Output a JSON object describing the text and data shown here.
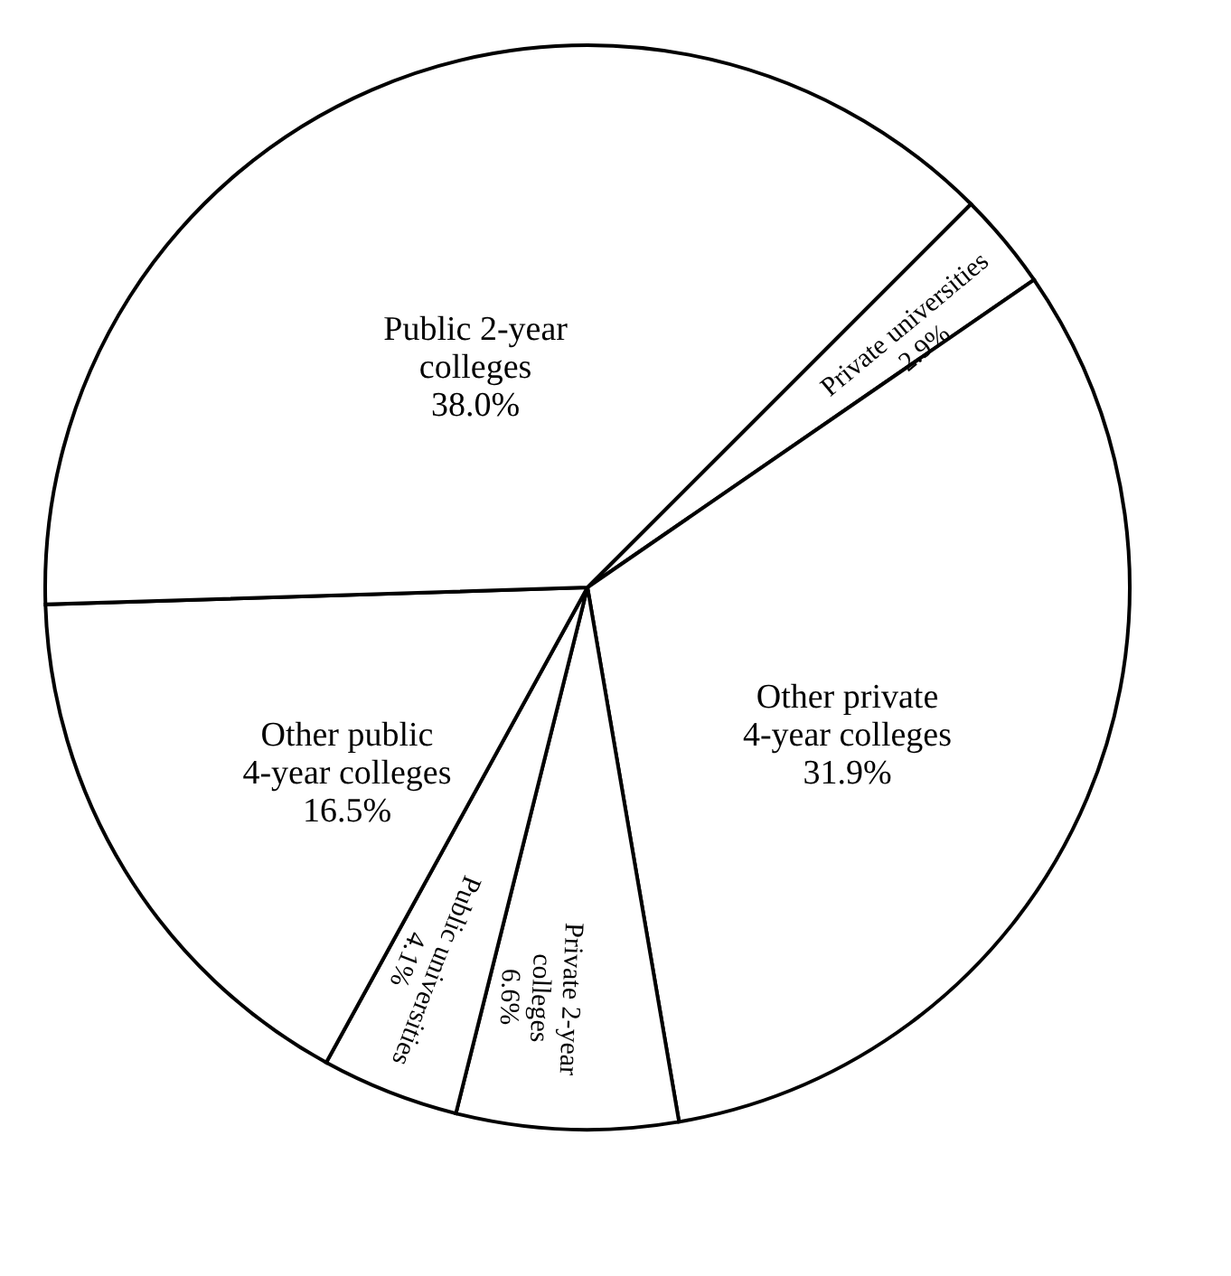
{
  "chart_data": {
    "type": "pie",
    "categories": [
      "Private universities",
      "Other private 4-year colleges",
      "Private 2-year colleges",
      "Public universities",
      "Other public 4-year colleges",
      "Public 2-year colleges"
    ],
    "values": [
      2.9,
      31.9,
      6.6,
      4.1,
      16.5,
      38.0
    ],
    "value_labels": [
      "2.9%",
      "31.9%",
      "6.6%",
      "4.1%",
      "16.5%",
      "38.0%"
    ],
    "colors": [
      "#ffffff",
      "#ffffff",
      "#ffffff",
      "#ffffff",
      "#ffffff",
      "#ffffff"
    ],
    "legend": false
  }
}
